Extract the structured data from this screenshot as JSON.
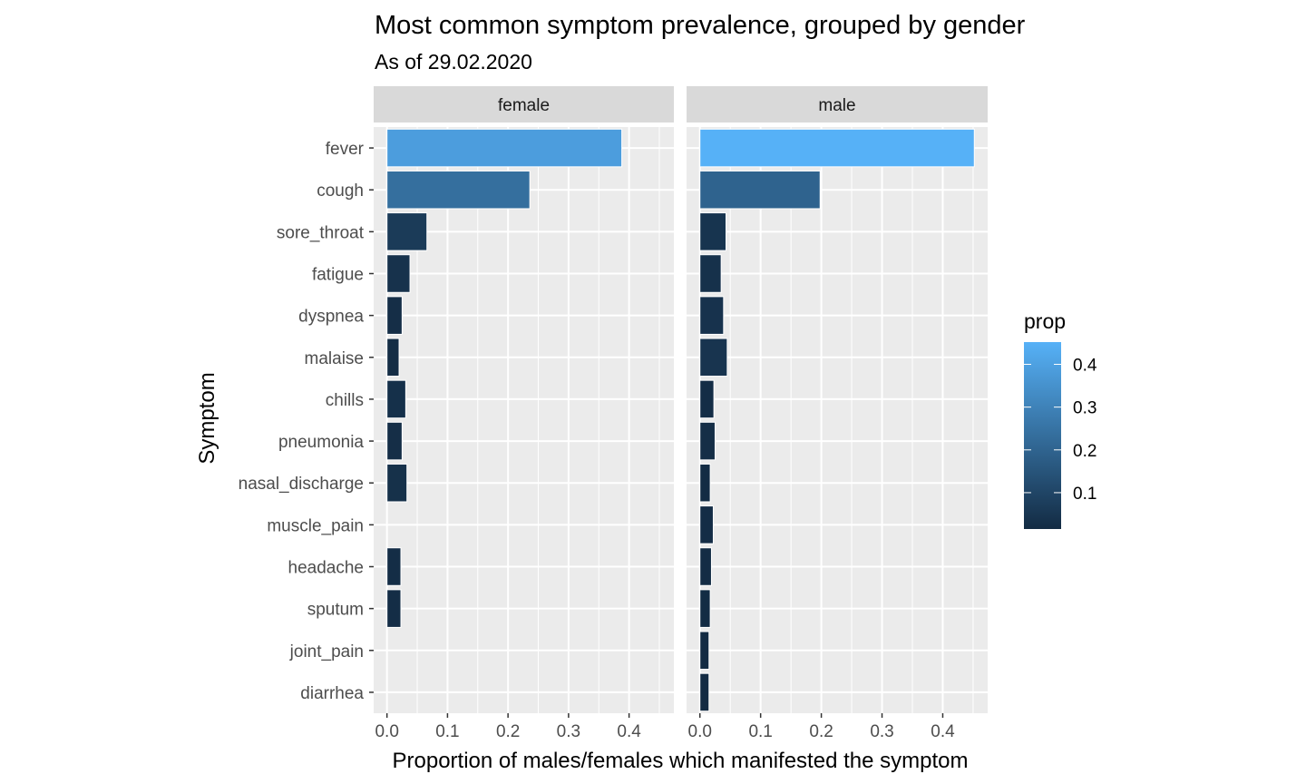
{
  "chart_data": {
    "type": "bar",
    "orientation": "horizontal",
    "title": "Most common symptom prevalence, grouped by gender",
    "subtitle": "As of 29.02.2020",
    "xlabel": "Proportion of males/females which manifested the symptom",
    "ylabel": "Symptom",
    "xlim": [
      -0.022,
      0.474
    ],
    "xticks": [
      0.0,
      0.1,
      0.2,
      0.3,
      0.4
    ],
    "xtick_labels": [
      "0.0",
      "0.1",
      "0.2",
      "0.3",
      "0.4"
    ],
    "grid": true,
    "categories": [
      "fever",
      "cough",
      "sore_throat",
      "fatigue",
      "dyspnea",
      "malaise",
      "chills",
      "pneumonia",
      "nasal_discharge",
      "muscle_pain",
      "headache",
      "sputum",
      "joint_pain",
      "diarrhea"
    ],
    "facets": [
      {
        "name": "female",
        "values": [
          0.388,
          0.236,
          0.066,
          0.038,
          0.025,
          0.02,
          0.031,
          0.025,
          0.033,
          null,
          0.023,
          0.023,
          null,
          null
        ]
      },
      {
        "name": "male",
        "values": [
          0.452,
          0.198,
          0.043,
          0.035,
          0.039,
          0.045,
          0.023,
          0.025,
          0.017,
          0.022,
          0.019,
          0.017,
          0.015,
          0.015
        ]
      }
    ],
    "legend": {
      "title": "prop",
      "placement": "right",
      "color_low": "#132B43",
      "color_high": "#56B1F7",
      "range": [
        0.015,
        0.452
      ],
      "ticks": [
        0.1,
        0.2,
        0.3,
        0.4
      ],
      "tick_labels": [
        "0.1",
        "0.2",
        "0.3",
        "0.4"
      ]
    },
    "colors": {
      "panel_bg": "#EBEBEB",
      "strip_bg": "#D9D9D9",
      "grid_major": "#FFFFFF",
      "bar_outline": "#FFFFFF"
    }
  }
}
